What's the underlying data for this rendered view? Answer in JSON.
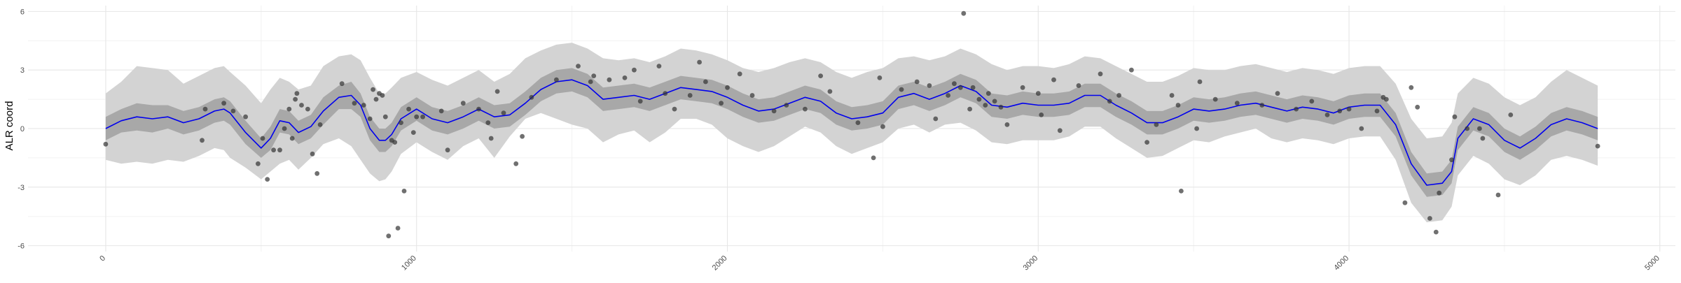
{
  "chart_data": {
    "type": "line",
    "title": "",
    "xlabel": "",
    "ylabel": "ALR coord",
    "xlim": [
      -250,
      5050
    ],
    "ylim": [
      -6.3,
      6.3
    ],
    "x_ticks": [
      0,
      1000,
      2000,
      3000,
      4000,
      5000
    ],
    "y_ticks": [
      -6,
      -3,
      0,
      3,
      6
    ],
    "y_tick_labels": [
      "-6",
      "-3",
      "0",
      "3",
      "6"
    ],
    "grid": true,
    "legend": "none",
    "colors": {
      "fit_line": "#0000ee",
      "inner_band": "#a8a8a8",
      "outer_band": "#d3d3d3",
      "points": "#333333",
      "grid_major": "#e6e6e6",
      "grid_minor": "#f2f2f2"
    },
    "series": [
      {
        "kind": "fit",
        "x": [
          0,
          50,
          100,
          150,
          200,
          250,
          300,
          350,
          380,
          400,
          450,
          500,
          530,
          560,
          590,
          620,
          660,
          700,
          750,
          790,
          820,
          850,
          880,
          900,
          920,
          950,
          1000,
          1050,
          1100,
          1150,
          1200,
          1250,
          1300,
          1350,
          1400,
          1450,
          1500,
          1550,
          1600,
          1650,
          1700,
          1750,
          1800,
          1850,
          1900,
          1950,
          2000,
          2050,
          2100,
          2150,
          2200,
          2250,
          2300,
          2350,
          2400,
          2450,
          2500,
          2550,
          2600,
          2650,
          2700,
          2750,
          2800,
          2850,
          2900,
          2950,
          3000,
          3050,
          3100,
          3150,
          3200,
          3250,
          3300,
          3350,
          3400,
          3450,
          3500,
          3550,
          3600,
          3650,
          3700,
          3750,
          3800,
          3850,
          3900,
          3950,
          4000,
          4050,
          4100,
          4150,
          4200,
          4250,
          4300,
          4330,
          4350,
          4400,
          4450,
          4500,
          4550,
          4600,
          4650,
          4700,
          4750,
          4800
        ],
        "y": [
          0.0,
          0.4,
          0.6,
          0.5,
          0.6,
          0.3,
          0.5,
          0.9,
          1.0,
          0.8,
          -0.2,
          -1.0,
          -0.5,
          0.4,
          0.3,
          -0.2,
          0.1,
          0.9,
          1.6,
          1.7,
          1.2,
          0.0,
          -0.6,
          -0.6,
          -0.3,
          0.5,
          1.0,
          0.5,
          0.3,
          0.6,
          1.0,
          0.6,
          0.7,
          1.3,
          2.0,
          2.4,
          2.5,
          2.2,
          1.5,
          1.6,
          1.7,
          1.5,
          1.8,
          2.1,
          2.0,
          1.9,
          1.6,
          1.2,
          0.9,
          1.0,
          1.3,
          1.6,
          1.4,
          0.8,
          0.5,
          0.6,
          0.8,
          1.6,
          1.8,
          1.5,
          1.8,
          2.2,
          1.9,
          1.2,
          1.1,
          1.3,
          1.2,
          1.2,
          1.3,
          1.7,
          1.7,
          1.2,
          0.8,
          0.3,
          0.3,
          0.6,
          1.0,
          0.9,
          1.0,
          1.2,
          1.3,
          1.1,
          0.9,
          1.1,
          1.0,
          0.8,
          1.1,
          1.2,
          1.2,
          0.2,
          -1.8,
          -2.9,
          -2.8,
          -2.2,
          -0.5,
          0.5,
          0.2,
          -0.6,
          -1.0,
          -0.5,
          0.2,
          0.5,
          0.3,
          0.0
        ],
        "inner_lower": [
          -0.6,
          -0.2,
          -0.1,
          -0.2,
          0.0,
          -0.3,
          -0.1,
          0.3,
          0.4,
          0.2,
          -0.8,
          -1.5,
          -1.1,
          -0.2,
          -0.3,
          -0.8,
          -0.5,
          0.2,
          1.0,
          1.0,
          0.6,
          -0.6,
          -1.2,
          -1.2,
          -0.9,
          -0.1,
          0.4,
          -0.1,
          -0.3,
          0.0,
          0.4,
          0.0,
          0.1,
          0.7,
          1.4,
          1.8,
          1.9,
          1.6,
          0.9,
          1.0,
          1.1,
          0.9,
          1.2,
          1.5,
          1.4,
          1.3,
          1.0,
          0.6,
          0.3,
          0.4,
          0.7,
          1.0,
          0.8,
          0.2,
          -0.1,
          0.0,
          0.2,
          1.0,
          1.2,
          0.9,
          1.2,
          1.6,
          1.3,
          0.6,
          0.5,
          0.7,
          0.6,
          0.6,
          0.7,
          1.1,
          1.1,
          0.6,
          0.2,
          -0.3,
          -0.3,
          0.0,
          0.4,
          0.3,
          0.4,
          0.6,
          0.7,
          0.5,
          0.3,
          0.5,
          0.4,
          0.2,
          0.5,
          0.6,
          0.6,
          -0.4,
          -2.4,
          -3.5,
          -3.4,
          -2.8,
          -1.1,
          -0.1,
          -0.4,
          -1.2,
          -1.6,
          -1.1,
          -0.4,
          -0.1,
          -0.3,
          -0.6
        ],
        "inner_upper": [
          0.6,
          1.0,
          1.3,
          1.2,
          1.2,
          0.9,
          1.1,
          1.5,
          1.6,
          1.4,
          0.4,
          -0.5,
          0.1,
          1.0,
          0.9,
          0.4,
          0.7,
          1.6,
          2.2,
          2.4,
          1.8,
          0.6,
          0.0,
          0.0,
          0.3,
          1.1,
          1.6,
          1.1,
          0.9,
          1.2,
          1.6,
          1.2,
          1.3,
          1.9,
          2.6,
          3.0,
          3.1,
          2.8,
          2.1,
          2.2,
          2.3,
          2.1,
          2.4,
          2.7,
          2.6,
          2.5,
          2.2,
          1.8,
          1.5,
          1.6,
          1.9,
          2.2,
          2.0,
          1.4,
          1.1,
          1.2,
          1.4,
          2.2,
          2.4,
          2.1,
          2.4,
          2.8,
          2.5,
          1.8,
          1.7,
          1.9,
          1.8,
          1.8,
          1.9,
          2.3,
          2.3,
          1.8,
          1.4,
          0.9,
          0.9,
          1.2,
          1.6,
          1.5,
          1.6,
          1.8,
          1.9,
          1.7,
          1.5,
          1.7,
          1.6,
          1.4,
          1.7,
          1.8,
          1.8,
          0.8,
          -1.2,
          -2.3,
          -2.2,
          -1.6,
          0.1,
          1.1,
          0.8,
          0.0,
          -0.4,
          0.1,
          0.8,
          1.1,
          0.9,
          0.6
        ],
        "outer_lower": [
          -1.6,
          -1.8,
          -1.7,
          -1.8,
          -1.6,
          -1.7,
          -1.4,
          -1.0,
          -1.1,
          -1.5,
          -2.0,
          -2.6,
          -2.2,
          -1.8,
          -1.6,
          -2.1,
          -1.5,
          -0.8,
          -0.5,
          -0.9,
          -1.6,
          -2.3,
          -2.7,
          -2.6,
          -2.2,
          -1.3,
          -0.7,
          -1.2,
          -1.6,
          -0.9,
          -0.5,
          -1.5,
          -0.4,
          0.5,
          0.8,
          0.5,
          0.2,
          0.0,
          -0.7,
          -0.3,
          -0.1,
          -0.7,
          -0.2,
          0.5,
          0.5,
          0.2,
          -0.5,
          -0.9,
          -1.2,
          -0.9,
          -0.4,
          0.1,
          -0.2,
          -0.9,
          -1.3,
          -1.0,
          -0.7,
          0.0,
          0.2,
          -0.2,
          0.2,
          0.3,
          -0.1,
          -0.7,
          -0.8,
          -0.6,
          -0.6,
          -0.6,
          -0.4,
          0.1,
          0.1,
          -0.5,
          -1.0,
          -1.5,
          -1.4,
          -1.0,
          -0.6,
          -0.7,
          -0.4,
          -0.2,
          0.0,
          -0.5,
          -0.7,
          -0.5,
          -0.6,
          -0.8,
          -0.5,
          -0.4,
          -0.4,
          -1.6,
          -3.8,
          -4.8,
          -4.7,
          -4.0,
          -2.4,
          -1.4,
          -1.8,
          -2.6,
          -2.9,
          -2.4,
          -1.6,
          -1.4,
          -1.6,
          -1.9
        ],
        "outer_upper": [
          1.8,
          2.4,
          3.2,
          3.1,
          3.0,
          2.3,
          2.7,
          3.1,
          3.2,
          2.9,
          2.2,
          1.3,
          2.0,
          2.6,
          2.4,
          2.0,
          2.2,
          3.2,
          3.7,
          3.8,
          3.5,
          2.6,
          1.8,
          1.8,
          2.1,
          2.6,
          2.9,
          2.5,
          2.2,
          2.6,
          3.0,
          2.4,
          2.8,
          3.6,
          4.0,
          4.3,
          4.4,
          4.1,
          3.6,
          3.5,
          3.6,
          3.4,
          3.7,
          4.1,
          4.0,
          3.8,
          3.5,
          3.1,
          2.9,
          3.1,
          3.4,
          3.6,
          3.4,
          2.9,
          2.6,
          2.9,
          3.1,
          3.6,
          3.7,
          3.5,
          3.7,
          4.1,
          3.8,
          3.3,
          3.0,
          3.2,
          3.2,
          3.1,
          3.3,
          3.7,
          3.6,
          3.2,
          2.8,
          2.4,
          2.4,
          2.7,
          3.1,
          3.0,
          3.0,
          3.2,
          3.3,
          3.1,
          2.9,
          3.1,
          3.0,
          2.8,
          3.1,
          3.2,
          3.2,
          2.3,
          0.5,
          -0.5,
          -0.4,
          0.3,
          1.8,
          2.6,
          2.3,
          1.6,
          1.2,
          1.6,
          2.4,
          3.0,
          2.6,
          2.2
        ]
      },
      {
        "kind": "points",
        "points": [
          [
            0,
            -0.8
          ],
          [
            310,
            -0.6
          ],
          [
            320,
            1.0
          ],
          [
            380,
            1.3
          ],
          [
            410,
            0.9
          ],
          [
            450,
            0.6
          ],
          [
            490,
            -1.8
          ],
          [
            505,
            -0.5
          ],
          [
            520,
            -2.6
          ],
          [
            540,
            -1.1
          ],
          [
            560,
            -1.1
          ],
          [
            575,
            0.0
          ],
          [
            590,
            1.0
          ],
          [
            600,
            -0.5
          ],
          [
            610,
            1.5
          ],
          [
            615,
            1.8
          ],
          [
            630,
            1.2
          ],
          [
            650,
            1.0
          ],
          [
            665,
            -1.3
          ],
          [
            680,
            -2.3
          ],
          [
            690,
            0.2
          ],
          [
            760,
            2.3
          ],
          [
            800,
            1.3
          ],
          [
            830,
            1.2
          ],
          [
            850,
            0.5
          ],
          [
            860,
            2.0
          ],
          [
            870,
            1.5
          ],
          [
            880,
            1.8
          ],
          [
            890,
            1.7
          ],
          [
            900,
            0.6
          ],
          [
            910,
            -5.5
          ],
          [
            920,
            -0.6
          ],
          [
            930,
            -0.7
          ],
          [
            940,
            -5.1
          ],
          [
            950,
            0.3
          ],
          [
            960,
            -3.2
          ],
          [
            975,
            1.0
          ],
          [
            990,
            -0.2
          ],
          [
            1000,
            0.6
          ],
          [
            1020,
            0.6
          ],
          [
            1080,
            0.9
          ],
          [
            1100,
            -1.1
          ],
          [
            1150,
            1.3
          ],
          [
            1200,
            1.0
          ],
          [
            1230,
            0.3
          ],
          [
            1240,
            -0.5
          ],
          [
            1260,
            1.9
          ],
          [
            1280,
            0.8
          ],
          [
            1320,
            -1.8
          ],
          [
            1340,
            -0.4
          ],
          [
            1370,
            1.6
          ],
          [
            1450,
            2.5
          ],
          [
            1520,
            3.2
          ],
          [
            1560,
            2.4
          ],
          [
            1570,
            2.7
          ],
          [
            1620,
            2.5
          ],
          [
            1670,
            2.6
          ],
          [
            1700,
            3.0
          ],
          [
            1720,
            1.4
          ],
          [
            1780,
            3.2
          ],
          [
            1800,
            1.8
          ],
          [
            1830,
            1.0
          ],
          [
            1880,
            1.7
          ],
          [
            1910,
            3.4
          ],
          [
            1930,
            2.4
          ],
          [
            1980,
            1.3
          ],
          [
            2000,
            2.1
          ],
          [
            2040,
            2.8
          ],
          [
            2080,
            1.7
          ],
          [
            2150,
            0.9
          ],
          [
            2190,
            1.2
          ],
          [
            2250,
            1.0
          ],
          [
            2300,
            2.7
          ],
          [
            2330,
            1.9
          ],
          [
            2420,
            0.3
          ],
          [
            2470,
            -1.5
          ],
          [
            2490,
            2.6
          ],
          [
            2500,
            0.1
          ],
          [
            2560,
            2.0
          ],
          [
            2610,
            2.4
          ],
          [
            2650,
            2.2
          ],
          [
            2670,
            0.5
          ],
          [
            2710,
            1.7
          ],
          [
            2730,
            2.3
          ],
          [
            2750,
            2.1
          ],
          [
            2760,
            5.9
          ],
          [
            2780,
            1.0
          ],
          [
            2790,
            2.1
          ],
          [
            2810,
            1.5
          ],
          [
            2830,
            1.2
          ],
          [
            2840,
            1.8
          ],
          [
            2860,
            1.4
          ],
          [
            2880,
            1.1
          ],
          [
            2900,
            0.2
          ],
          [
            2950,
            2.1
          ],
          [
            3000,
            1.8
          ],
          [
            3010,
            0.7
          ],
          [
            3050,
            2.5
          ],
          [
            3070,
            -0.1
          ],
          [
            3130,
            2.2
          ],
          [
            3200,
            2.8
          ],
          [
            3230,
            1.4
          ],
          [
            3260,
            1.7
          ],
          [
            3300,
            3.0
          ],
          [
            3350,
            -0.7
          ],
          [
            3380,
            0.2
          ],
          [
            3430,
            1.7
          ],
          [
            3450,
            1.2
          ],
          [
            3460,
            -3.2
          ],
          [
            3510,
            0.0
          ],
          [
            3520,
            2.4
          ],
          [
            3570,
            1.5
          ],
          [
            3640,
            1.3
          ],
          [
            3720,
            1.2
          ],
          [
            3770,
            1.8
          ],
          [
            3830,
            1.0
          ],
          [
            3880,
            1.4
          ],
          [
            3930,
            0.7
          ],
          [
            3970,
            0.9
          ],
          [
            4000,
            1.0
          ],
          [
            4040,
            0.0
          ],
          [
            4090,
            0.9
          ],
          [
            4110,
            1.6
          ],
          [
            4120,
            1.5
          ],
          [
            4180,
            -3.8
          ],
          [
            4200,
            2.1
          ],
          [
            4220,
            1.1
          ],
          [
            4260,
            -4.6
          ],
          [
            4280,
            -5.3
          ],
          [
            4290,
            -3.3
          ],
          [
            4330,
            -1.6
          ],
          [
            4340,
            0.6
          ],
          [
            4380,
            0.0
          ],
          [
            4420,
            0.0
          ],
          [
            4430,
            -0.5
          ],
          [
            4480,
            -3.4
          ],
          [
            4520,
            0.7
          ],
          [
            4800,
            -0.9
          ]
        ]
      }
    ]
  }
}
